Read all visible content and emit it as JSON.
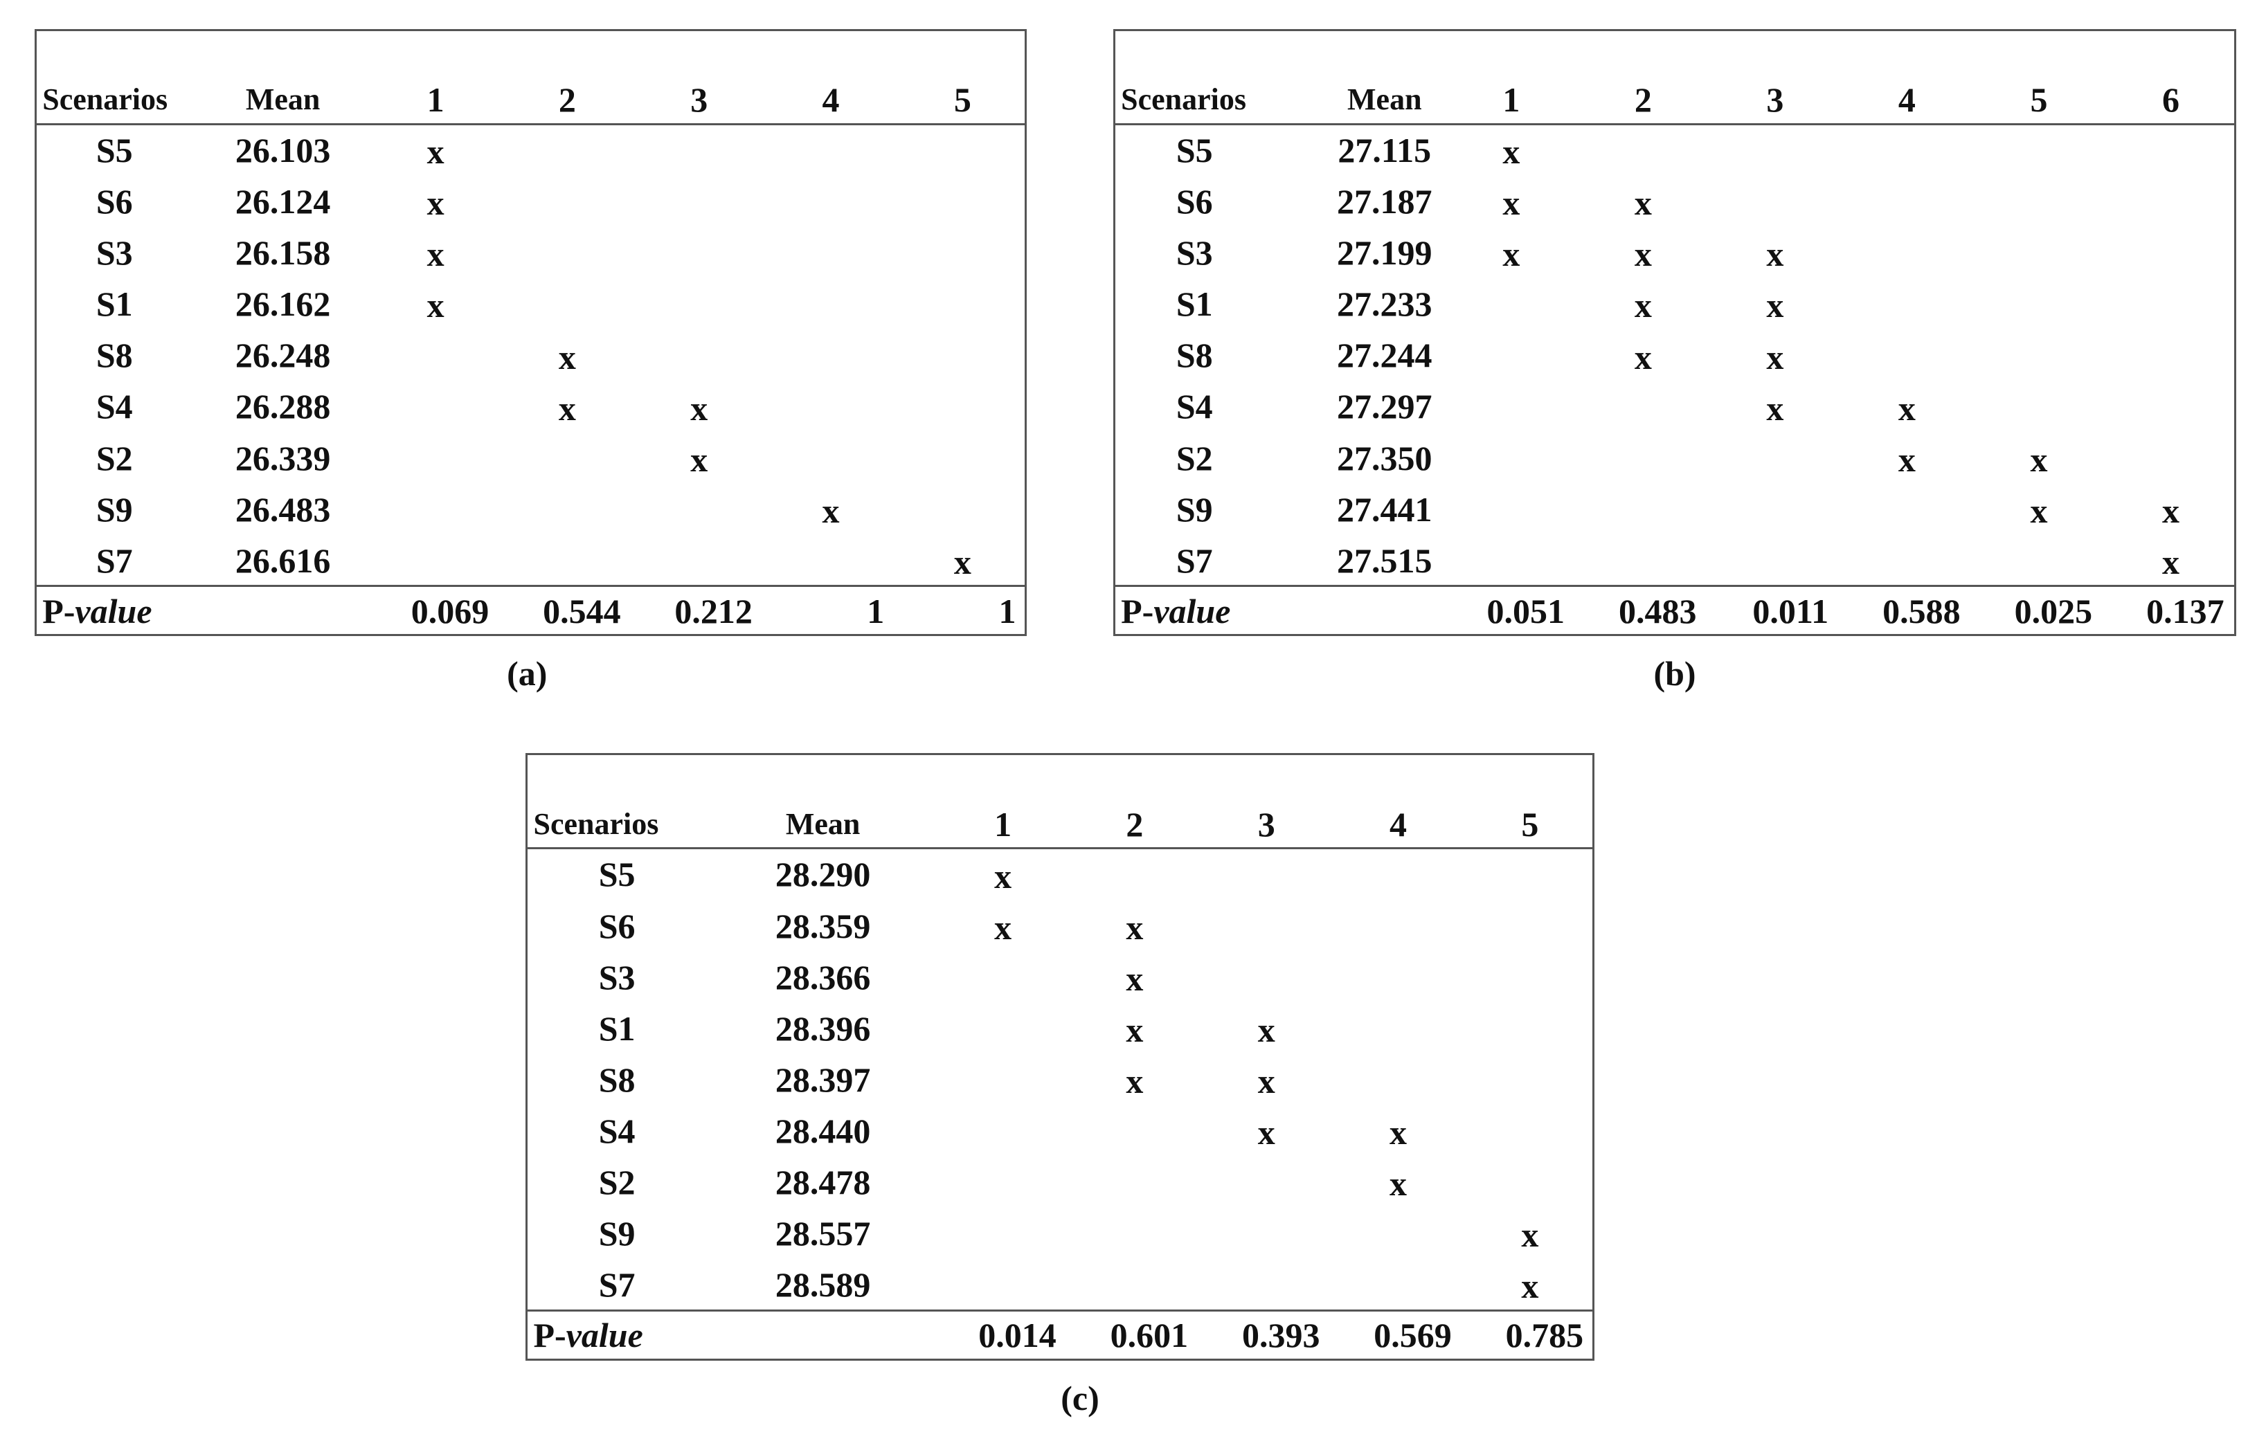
{
  "tables": [
    {
      "caption": "(a)",
      "headers": [
        "Scenarios",
        "Mean",
        "1",
        "2",
        "3",
        "4",
        "5"
      ],
      "rows": [
        {
          "scenario": "S5",
          "mean": "26.103",
          "groups": [
            "x",
            null,
            null,
            null,
            null
          ]
        },
        {
          "scenario": "S6",
          "mean": "26.124",
          "groups": [
            "x",
            null,
            null,
            null,
            null
          ]
        },
        {
          "scenario": "S3",
          "mean": "26.158",
          "groups": [
            "x",
            null,
            null,
            null,
            null
          ]
        },
        {
          "scenario": "S1",
          "mean": "26.162",
          "groups": [
            "x",
            null,
            null,
            null,
            null
          ]
        },
        {
          "scenario": "S8",
          "mean": "26.248",
          "groups": [
            null,
            "x",
            null,
            null,
            null
          ]
        },
        {
          "scenario": "S4",
          "mean": "26.288",
          "groups": [
            null,
            "x",
            "x",
            null,
            null
          ]
        },
        {
          "scenario": "S2",
          "mean": "26.339",
          "groups": [
            null,
            null,
            "x",
            null,
            null
          ]
        },
        {
          "scenario": "S9",
          "mean": "26.483",
          "groups": [
            null,
            null,
            null,
            "x",
            null
          ]
        },
        {
          "scenario": "S7",
          "mean": "26.616",
          "groups": [
            null,
            null,
            null,
            null,
            "x"
          ]
        }
      ],
      "pvalue_label": "P-value",
      "pvalues": [
        "0.069",
        "0.544",
        "0.212",
        "1",
        "1"
      ]
    },
    {
      "caption": "(b)",
      "headers": [
        "Scenarios",
        "Mean",
        "1",
        "2",
        "3",
        "4",
        "5",
        "6"
      ],
      "rows": [
        {
          "scenario": "S5",
          "mean": "27.115",
          "groups": [
            "x",
            null,
            null,
            null,
            null,
            null
          ]
        },
        {
          "scenario": "S6",
          "mean": "27.187",
          "groups": [
            "x",
            "x",
            null,
            null,
            null,
            null
          ]
        },
        {
          "scenario": "S3",
          "mean": "27.199",
          "groups": [
            "x",
            "x",
            "x",
            null,
            null,
            null
          ]
        },
        {
          "scenario": "S1",
          "mean": "27.233",
          "groups": [
            null,
            "x",
            "x",
            null,
            null,
            null
          ]
        },
        {
          "scenario": "S8",
          "mean": "27.244",
          "groups": [
            null,
            "x",
            "x",
            null,
            null,
            null
          ]
        },
        {
          "scenario": "S4",
          "mean": "27.297",
          "groups": [
            null,
            null,
            "x",
            "x",
            null,
            null
          ]
        },
        {
          "scenario": "S2",
          "mean": "27.350",
          "groups": [
            null,
            null,
            null,
            "x",
            "x",
            null
          ]
        },
        {
          "scenario": "S9",
          "mean": "27.441",
          "groups": [
            null,
            null,
            null,
            null,
            "x",
            "x"
          ]
        },
        {
          "scenario": "S7",
          "mean": "27.515",
          "groups": [
            null,
            null,
            null,
            null,
            null,
            "x"
          ]
        }
      ],
      "pvalue_label": "P-value",
      "pvalues": [
        "0.051",
        "0.483",
        "0.011",
        "0.588",
        "0.025",
        "0.137"
      ]
    },
    {
      "caption": "(c)",
      "headers": [
        "Scenarios",
        "Mean",
        "1",
        "2",
        "3",
        "4",
        "5"
      ],
      "rows": [
        {
          "scenario": "S5",
          "mean": "28.290",
          "groups": [
            "x",
            null,
            null,
            null,
            null
          ]
        },
        {
          "scenario": "S6",
          "mean": "28.359",
          "groups": [
            "x",
            "x",
            null,
            null,
            null
          ]
        },
        {
          "scenario": "S3",
          "mean": "28.366",
          "groups": [
            null,
            "x",
            null,
            null,
            null
          ]
        },
        {
          "scenario": "S1",
          "mean": "28.396",
          "groups": [
            null,
            "x",
            "x",
            null,
            null
          ]
        },
        {
          "scenario": "S8",
          "mean": "28.397",
          "groups": [
            null,
            "x",
            "x",
            null,
            null
          ]
        },
        {
          "scenario": "S4",
          "mean": "28.440",
          "groups": [
            null,
            null,
            "x",
            "x",
            null
          ]
        },
        {
          "scenario": "S2",
          "mean": "28.478",
          "groups": [
            null,
            null,
            null,
            "x",
            null
          ]
        },
        {
          "scenario": "S9",
          "mean": "28.557",
          "groups": [
            null,
            null,
            null,
            null,
            "x"
          ]
        },
        {
          "scenario": "S7",
          "mean": "28.589",
          "groups": [
            null,
            null,
            null,
            null,
            "x"
          ]
        }
      ],
      "pvalue_label": "P-value",
      "pvalues": [
        "0.014",
        "0.601",
        "0.393",
        "0.569",
        "0.785"
      ]
    }
  ]
}
